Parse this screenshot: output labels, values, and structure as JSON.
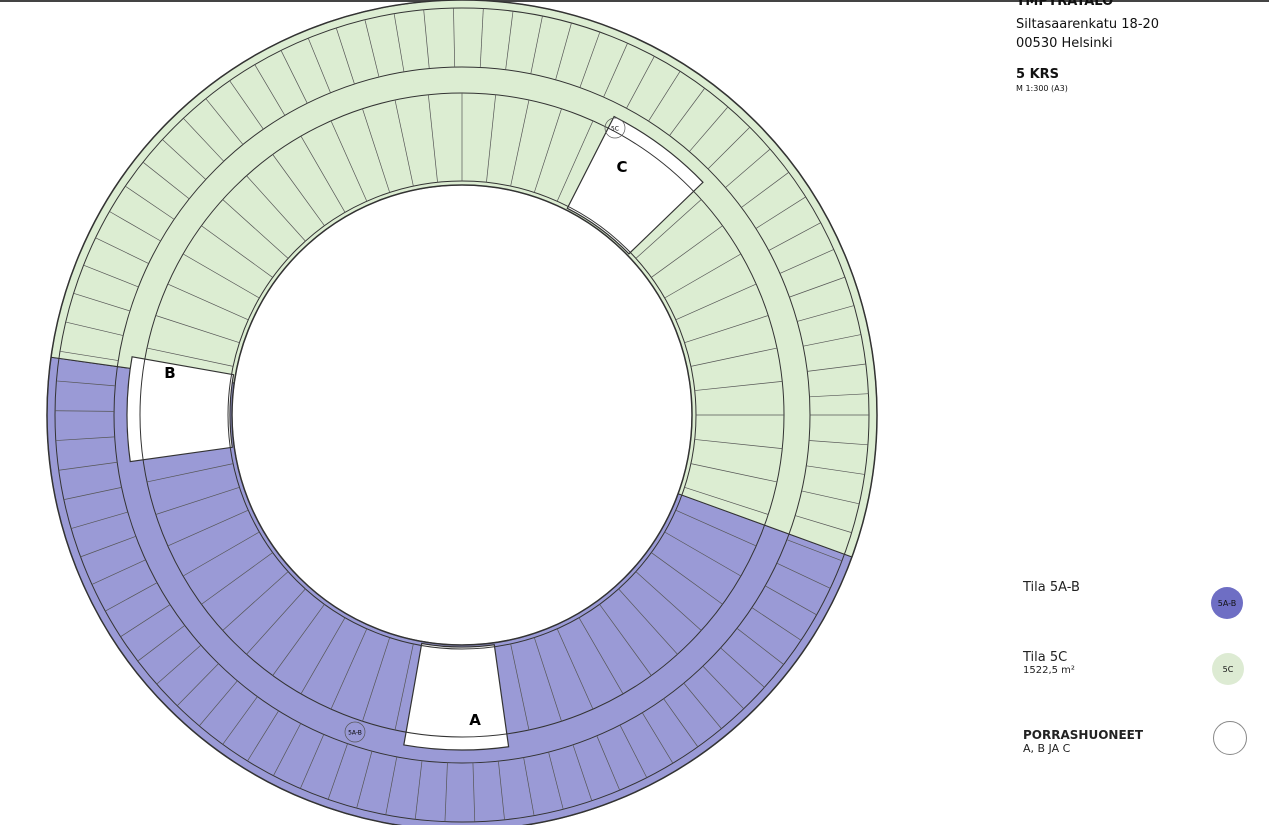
{
  "header": {
    "building": "YMPYRÄTALO",
    "address_line1": "Siltasaarenkatu 18-20",
    "address_line2": "00530 Helsinki",
    "floor": "5 KRS",
    "scale": "M 1:300 (A3)"
  },
  "legend": [
    {
      "label": "Tila 5A-B",
      "sub": "",
      "badge": "5A-B",
      "color": "#8f8fd4"
    },
    {
      "label": "Tila 5C",
      "sub": "1522,5 m²",
      "badge": "5C",
      "color": "#ddebd3"
    },
    {
      "label": "PORRASHUONEET",
      "sub": "A, B JA C",
      "badge": "",
      "color": "#ffffff"
    }
  ],
  "plan": {
    "stairwells": [
      "A",
      "B",
      "C"
    ],
    "zone_badges": [
      "5C",
      "5A-B"
    ],
    "colors": {
      "zone_ab": "#9a9ad6",
      "zone_c": "#dcedd2",
      "stair": "#ffffff",
      "walls": "#333333"
    }
  }
}
